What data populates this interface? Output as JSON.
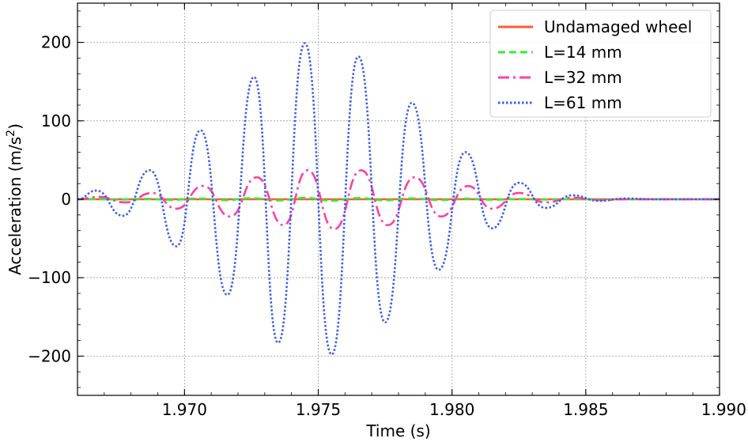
{
  "chart_data": {
    "type": "line",
    "title": "",
    "xlabel": "Time (s)",
    "ylabel_main": "Acceleration (m/s",
    "ylabel_sup": "2",
    "ylabel_close": ")",
    "xlim": [
      1.966,
      1.99
    ],
    "ylim": [
      -250,
      250
    ],
    "x_ticks": [
      1.97,
      1.975,
      1.98,
      1.985,
      1.99
    ],
    "x_tick_labels": [
      "1.970",
      "1.975",
      "1.980",
      "1.985",
      "1.990"
    ],
    "y_ticks": [
      -200,
      -100,
      0,
      100,
      200
    ],
    "y_tick_labels": [
      "−200",
      "−100",
      "0",
      "100",
      "200"
    ],
    "grid": true,
    "legend_position": "top-right",
    "series": [
      {
        "name": "Undamaged wheel",
        "color": "#ff5a36",
        "style": "solid",
        "x": [
          1.966,
          1.978,
          1.99
        ],
        "y": [
          0,
          0,
          0
        ]
      },
      {
        "name": "L=14 mm",
        "color": "#33ee33",
        "style": "dashed",
        "x": [
          1.966,
          1.9665,
          1.9675,
          1.9685,
          1.9695,
          1.9705,
          1.9715,
          1.9725,
          1.9735,
          1.9745,
          1.9755,
          1.9765,
          1.9775,
          1.9785,
          1.9795,
          1.9805,
          1.9815,
          1.9825,
          1.9835,
          1.9845,
          1.986,
          1.99
        ],
        "y": [
          0,
          0.2,
          -0.4,
          0.6,
          -0.8,
          1.0,
          -1.2,
          1.4,
          -1.6,
          1.8,
          -1.8,
          1.6,
          -1.4,
          1.2,
          -1.0,
          0.8,
          -0.6,
          0.4,
          -0.3,
          0.2,
          0,
          0
        ]
      },
      {
        "name": "L=32 mm",
        "color": "#ff3fa4",
        "style": "dashdot",
        "x": [
          1.966,
          1.9668,
          1.9678,
          1.9688,
          1.9697,
          1.9707,
          1.9717,
          1.9727,
          1.9737,
          1.9746,
          1.9756,
          1.9766,
          1.9776,
          1.9786,
          1.9796,
          1.9806,
          1.9815,
          1.9825,
          1.9835,
          1.9845,
          1.9855,
          1.9865,
          1.99
        ],
        "y": [
          0,
          3,
          -4,
          8,
          -12,
          17,
          -22,
          28,
          -33,
          37,
          -38,
          37,
          -33,
          28,
          -22,
          17,
          -12,
          8,
          -4,
          2,
          -1,
          0,
          0
        ]
      },
      {
        "name": "L=61 mm",
        "color": "#3a5df0",
        "style": "dotted",
        "x": [
          1.966,
          1.9667,
          1.9677,
          1.9687,
          1.9697,
          1.9706,
          1.9716,
          1.9726,
          1.9735,
          1.9745,
          1.9755,
          1.9765,
          1.9775,
          1.9785,
          1.9795,
          1.9805,
          1.9815,
          1.9825,
          1.9835,
          1.9845,
          1.9855,
          1.9865,
          1.9875,
          1.99
        ],
        "y": [
          0,
          11,
          -21,
          37,
          -60,
          88,
          -122,
          156,
          -183,
          199,
          -198,
          182,
          -157,
          123,
          -90,
          60,
          -37,
          21,
          -11,
          5,
          -2,
          1,
          0,
          0
        ]
      }
    ]
  }
}
